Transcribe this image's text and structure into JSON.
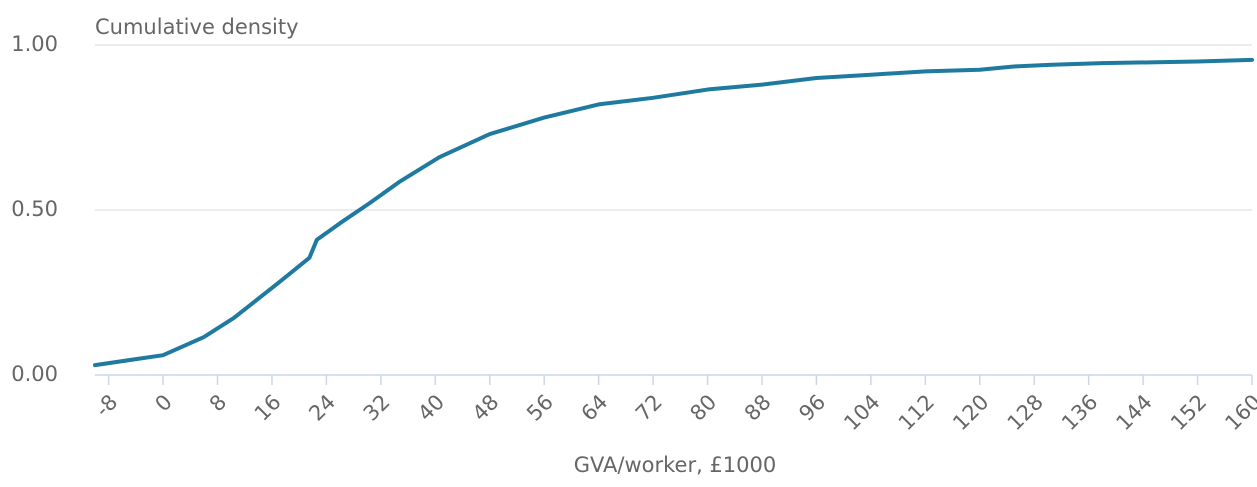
{
  "chart_data": {
    "type": "line",
    "y_label": "Cumulative density",
    "x_label": "GVA/worker, £1000",
    "x": [
      -10,
      0,
      6,
      10.4,
      17,
      21.5,
      22.6,
      26,
      30.3,
      34.7,
      40.6,
      48,
      56,
      64,
      72,
      80,
      88,
      96,
      104,
      112,
      120,
      125,
      130.6,
      138,
      152,
      160
    ],
    "series": [
      {
        "name": "Cumulative density",
        "color": "#1f7aa0",
        "values": [
          0.03,
          0.06,
          0.115,
          0.173,
          0.28,
          0.355,
          0.41,
          0.46,
          0.52,
          0.585,
          0.66,
          0.73,
          0.78,
          0.82,
          0.84,
          0.865,
          0.88,
          0.9,
          0.91,
          0.92,
          0.925,
          0.935,
          0.94,
          0.945,
          0.95,
          0.955
        ]
      }
    ],
    "xlim": [
      -10,
      160
    ],
    "ylim": [
      0,
      1
    ],
    "xticks": [
      -8,
      0,
      8,
      16,
      24,
      32,
      40,
      48,
      56,
      64,
      72,
      80,
      88,
      96,
      104,
      112,
      120,
      128,
      136,
      144,
      152,
      160
    ],
    "yticks": [
      {
        "value": 0,
        "label": "0.00"
      },
      {
        "value": 0.5,
        "label": "0.50"
      },
      {
        "value": 1,
        "label": "1.00"
      }
    ],
    "grid": true
  }
}
